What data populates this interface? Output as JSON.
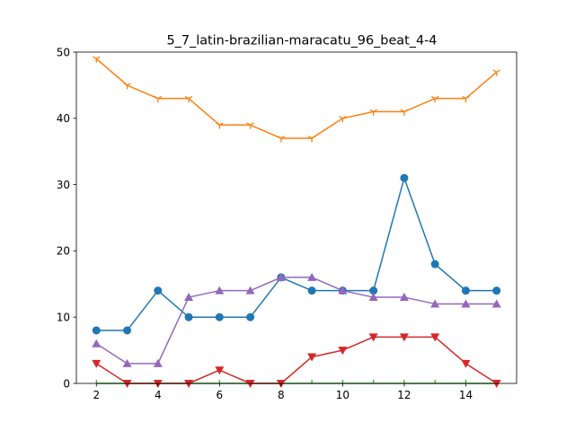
{
  "chart_data": {
    "type": "line",
    "title": "5_7_latin-brazilian-maracatu_96_beat_4-4",
    "xlabel": "",
    "ylabel": "",
    "x": [
      2,
      3,
      4,
      5,
      6,
      7,
      8,
      9,
      10,
      11,
      12,
      13,
      14,
      15
    ],
    "xlim": [
      1.35,
      15.65
    ],
    "ylim": [
      0,
      50
    ],
    "xticks": [
      2,
      4,
      6,
      8,
      10,
      12,
      14
    ],
    "yticks": [
      0,
      10,
      20,
      30,
      40,
      50
    ],
    "grid": false,
    "legend": "none",
    "series": [
      {
        "color": "#1f77b4",
        "marker": "circle",
        "values": [
          8,
          8,
          14,
          10,
          10,
          10,
          16,
          14,
          14,
          14,
          31,
          18,
          14,
          14
        ]
      },
      {
        "color": "#ff7f0e",
        "marker": "tri_down",
        "values": [
          49,
          45,
          43,
          43,
          39,
          39,
          37,
          37,
          40,
          41,
          41,
          43,
          43,
          47
        ]
      },
      {
        "color": "#2ca02c",
        "marker": "tick",
        "values": [
          0,
          0,
          0,
          0,
          0,
          0,
          0,
          0,
          0,
          0,
          0,
          0,
          0,
          0
        ]
      },
      {
        "color": "#d62728",
        "marker": "triangle_down",
        "values": [
          3,
          0,
          0,
          0,
          2,
          0,
          0,
          4,
          5,
          7,
          7,
          7,
          3,
          0
        ]
      },
      {
        "color": "#9467bd",
        "marker": "triangle_up",
        "values": [
          6,
          3,
          3,
          13,
          14,
          14,
          16,
          16,
          14,
          13,
          13,
          12,
          12,
          12
        ]
      }
    ]
  }
}
